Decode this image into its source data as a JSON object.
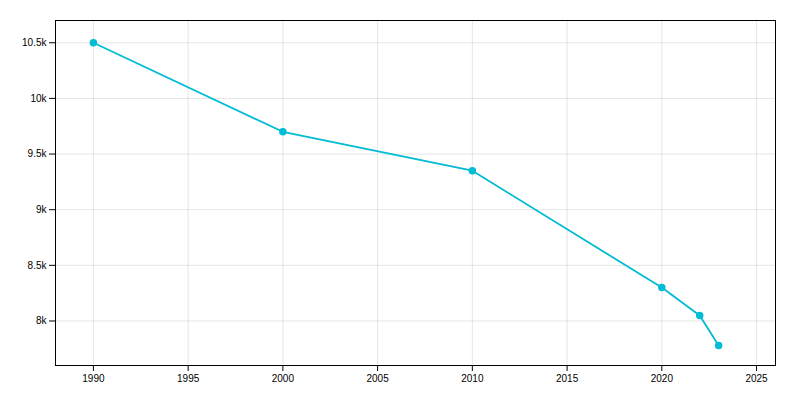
{
  "chart_data": {
    "type": "line",
    "x": [
      1990,
      2000,
      2010,
      2020,
      2022,
      2023
    ],
    "values": [
      10500,
      9700,
      9350,
      8300,
      8050,
      7780
    ],
    "color": "#00bcd4",
    "marker": "circle",
    "xlim": [
      1988,
      2026
    ],
    "ylim": [
      7600,
      10700
    ],
    "xticks": [
      1990,
      1995,
      2000,
      2005,
      2010,
      2015,
      2020,
      2025
    ],
    "yticks": [
      {
        "value": 8000,
        "label": "8k"
      },
      {
        "value": 8500,
        "label": "8.5k"
      },
      {
        "value": 9000,
        "label": "9k"
      },
      {
        "value": 9500,
        "label": "9.5k"
      },
      {
        "value": 10000,
        "label": "10k"
      },
      {
        "value": 10500,
        "label": "10.5k"
      }
    ],
    "grid": true
  }
}
